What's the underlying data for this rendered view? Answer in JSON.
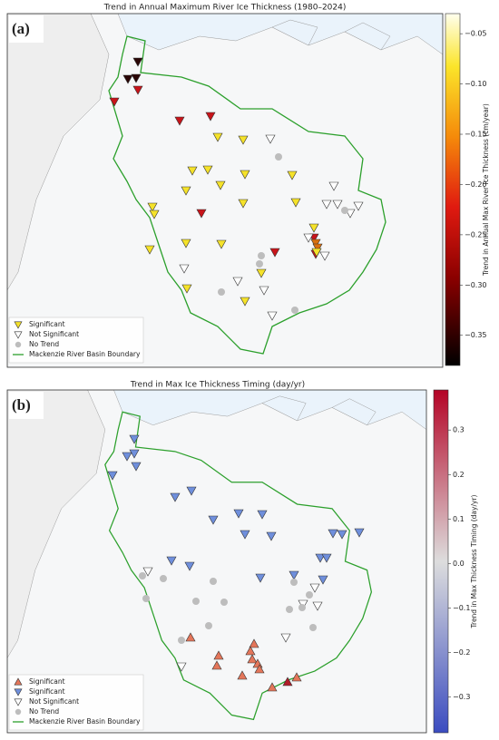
{
  "panels": [
    {
      "label": "(a)",
      "title": "Trend in Annual Maximum River Ice Thickness (1980–2024)",
      "legend": [
        "Significant",
        "Not Significant",
        "No Trend",
        "Mackenzie River Basin Boundary"
      ],
      "colorbar": {
        "label": "Trend in Annual Max River Ice Thickness (cm/year)",
        "lim": [
          -0.38,
          -0.03
        ],
        "ticks": [
          {
            "value": -0.05,
            "label": "−0.05"
          },
          {
            "value": -0.1,
            "label": "−0.10"
          },
          {
            "value": -0.15,
            "label": "−0.15"
          },
          {
            "value": -0.2,
            "label": "−0.20"
          },
          {
            "value": -0.25,
            "label": "−0.25"
          },
          {
            "value": -0.3,
            "label": "−0.30"
          },
          {
            "value": -0.35,
            "label": "−0.35"
          }
        ]
      }
    },
    {
      "label": "(b)",
      "title": "Trend in Max Ice Thickness Timing (day/yr)",
      "legend": [
        "Significant",
        "Significant",
        "Not Significant",
        "No Trend",
        "Mackenzie River Basin Boundary"
      ],
      "colorbar": {
        "label": "Trend in Max Thickness Timing (day/yr)",
        "lim": [
          -0.38,
          0.39
        ],
        "ticks": [
          0.3,
          0.2,
          0.1,
          {
            "value": 0,
            "label": "0.0"
          },
          {
            "value": -0.1,
            "label": "−0.1"
          },
          {
            "value": -0.2,
            "label": "−0.2"
          },
          {
            "value": -0.3,
            "label": "−0.3"
          }
        ]
      }
    }
  ]
}
